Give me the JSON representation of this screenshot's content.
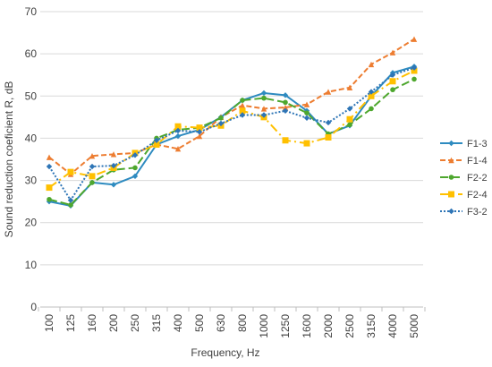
{
  "chart_data": {
    "type": "line",
    "title": "",
    "xlabel": "Frequency, Hz",
    "ylabel": "Sound reduction coeficient R, dB",
    "categories": [
      "100",
      "125",
      "160",
      "200",
      "250",
      "315",
      "400",
      "500",
      "630",
      "800",
      "1000",
      "1250",
      "1600",
      "2000",
      "2500",
      "3150",
      "4000",
      "5000"
    ],
    "ylim": [
      0,
      70
    ],
    "yticks": [
      0,
      10,
      20,
      30,
      40,
      50,
      60,
      70
    ],
    "grid": true,
    "legend_position": "right",
    "series": [
      {
        "name": "F1-3",
        "color": "#2E8BC0",
        "dash": "solid",
        "marker": "diamond",
        "values": [
          25,
          24,
          29.5,
          29,
          31,
          38.5,
          40.5,
          42,
          45,
          49,
          50.7,
          50.2,
          46.5,
          41,
          43,
          50,
          55.5,
          57
        ]
      },
      {
        "name": "F1-4",
        "color": "#ED7D31",
        "dash": "dashed",
        "marker": "triangle",
        "values": [
          35.5,
          31.5,
          35.8,
          36.2,
          36.5,
          38.5,
          37.5,
          40.5,
          45,
          47.8,
          47,
          47.3,
          48,
          51,
          52,
          57.5,
          60.3,
          63.5
        ]
      },
      {
        "name": "F2-2",
        "color": "#4EA72E",
        "dash": "longdash",
        "marker": "circle",
        "values": [
          25.5,
          24.2,
          29.5,
          32.5,
          33,
          40,
          42,
          42.5,
          44.8,
          49,
          49.5,
          48.5,
          46,
          41,
          43.2,
          47,
          51.5,
          54
        ]
      },
      {
        "name": "F2-4",
        "color": "#FFC000",
        "dash": "dashdot",
        "marker": "square",
        "values": [
          28.3,
          32,
          31,
          33,
          36.5,
          38.5,
          42.8,
          42.5,
          43,
          46.5,
          45,
          39.5,
          38.8,
          40.2,
          44.5,
          50,
          53.5,
          56
        ]
      },
      {
        "name": "F3-2",
        "color": "#2E75B6",
        "dash": "dotted",
        "marker": "diamond",
        "values": [
          33.3,
          25.3,
          33.3,
          33.5,
          36,
          39.5,
          41.8,
          41.5,
          43.5,
          45.5,
          45.5,
          46.5,
          44.8,
          43.7,
          47,
          51,
          55,
          56.7
        ]
      }
    ]
  }
}
